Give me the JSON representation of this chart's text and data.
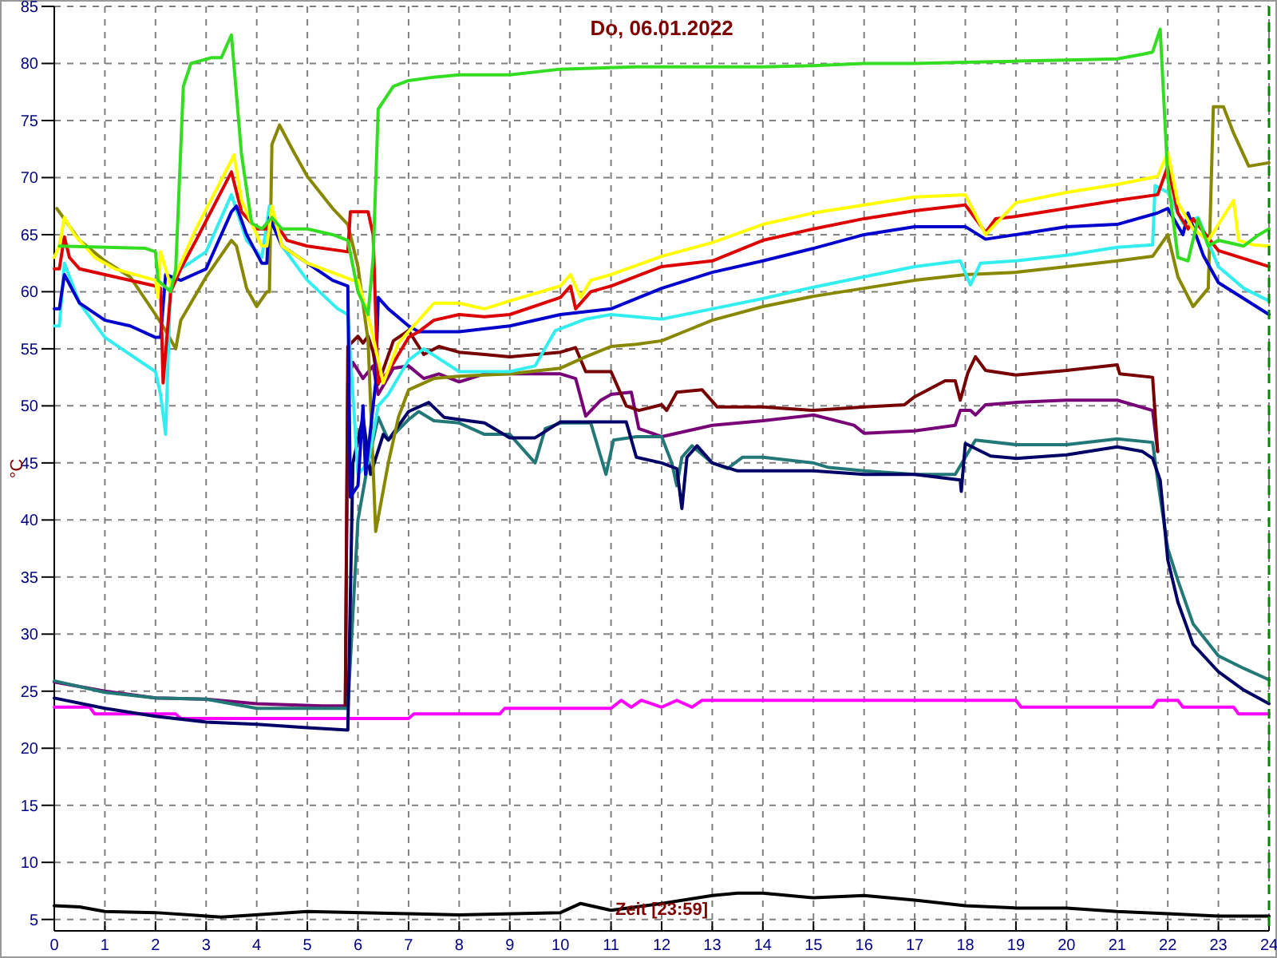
{
  "chart_data": {
    "type": "line",
    "title": "Do, 06.01.2022",
    "ylabel": "°C",
    "annotations": [
      "Zeit [23:59]"
    ],
    "xlim": [
      0,
      24
    ],
    "xticks": [
      0,
      1,
      2,
      3,
      4,
      5,
      6,
      7,
      8,
      9,
      10,
      11,
      12,
      13,
      14,
      15,
      16,
      17,
      18,
      19,
      20,
      21,
      22,
      23,
      24
    ],
    "ylim": [
      4,
      85
    ],
    "yticks": [
      5,
      10,
      15,
      20,
      25,
      30,
      35,
      40,
      45,
      50,
      55,
      60,
      65,
      70,
      75,
      80,
      85
    ],
    "grid": true,
    "ref_lines": [
      {
        "axis": "x",
        "value": 24,
        "color": "#008800",
        "line_style": "dashed"
      }
    ],
    "series": [
      {
        "color": "#000000",
        "x": [
          0,
          0.5,
          1,
          2,
          3.3,
          5,
          7,
          8,
          10,
          10.4,
          11,
          12,
          13,
          13.5,
          14,
          15,
          16,
          17,
          18,
          19,
          20,
          21,
          22,
          23,
          24
        ],
        "values": [
          6.2,
          6.1,
          5.7,
          5.6,
          5.2,
          5.7,
          5.5,
          5.4,
          5.6,
          6.4,
          5.8,
          6.4,
          7.1,
          7.3,
          7.3,
          6.9,
          7.1,
          6.7,
          6.2,
          6,
          6,
          5.7,
          5.5,
          5.3,
          5.3
        ]
      },
      {
        "color": "#ff00ff",
        "x": [
          0,
          0.7,
          0.8,
          2.4,
          2.5,
          7,
          7.1,
          8.8,
          8.9,
          11,
          11.2,
          11.4,
          11.6,
          12,
          12.3,
          12.6,
          12.8,
          19,
          19.1,
          21.7,
          21.8,
          22.2,
          22.3,
          23.3,
          23.4,
          24
        ],
        "values": [
          23.6,
          23.6,
          23,
          23,
          22.6,
          22.6,
          23,
          23,
          23.5,
          23.5,
          24.2,
          23.6,
          24.2,
          23.6,
          24.2,
          23.6,
          24.2,
          24.2,
          23.6,
          23.6,
          24.2,
          24.2,
          23.6,
          23.6,
          23,
          23
        ]
      },
      {
        "color": "#770077",
        "x": [
          0,
          1,
          2,
          3,
          4,
          5.3,
          5.75,
          5.8,
          5.9,
          6.1,
          6.3,
          6.4,
          6.7,
          7,
          7.3,
          7.6,
          8,
          8.5,
          9,
          10,
          10.3,
          10.5,
          10.8,
          11,
          11.4,
          11.55,
          12,
          13,
          14,
          15,
          15.8,
          16,
          17,
          17.8,
          17.9,
          18.1,
          18.2,
          18.4,
          19,
          20,
          21,
          21.7,
          21.8
        ],
        "values": [
          25.8,
          25,
          24.4,
          24.3,
          23.9,
          23.7,
          23.7,
          52,
          53.8,
          52.4,
          53.5,
          51,
          53.3,
          53.5,
          52.4,
          52.8,
          52.1,
          52.8,
          52.8,
          52.8,
          52.4,
          49.1,
          50.5,
          51,
          51.2,
          48,
          47.3,
          48.3,
          48.7,
          49.2,
          48.3,
          47.6,
          47.8,
          48.3,
          49.6,
          49.6,
          49.2,
          50.1,
          50.3,
          50.5,
          50.5,
          49.6,
          46
        ]
      },
      {
        "color": "#770000",
        "x": [
          5.75,
          5.8,
          6,
          6.1,
          6.2,
          6.3,
          6.4,
          6.7,
          7,
          7.3,
          7.6,
          8,
          8.5,
          9,
          10,
          10.3,
          10.5,
          11,
          11.3,
          11.55,
          12,
          12.1,
          12.3,
          12.8,
          13.1,
          14,
          15,
          16,
          16.8,
          17,
          17.6,
          17.8,
          17.9,
          18.05,
          18.2,
          18.4,
          19,
          20,
          21,
          21.05,
          21.7,
          21.8
        ],
        "values": [
          23.5,
          55.2,
          56.1,
          55.5,
          56.1,
          54.7,
          51.9,
          55.7,
          56.6,
          54.5,
          55.2,
          54.7,
          54.5,
          54.3,
          54.7,
          55.1,
          53,
          53,
          50,
          49.6,
          50.1,
          49.6,
          51.2,
          51.4,
          49.9,
          49.9,
          49.6,
          49.9,
          50.1,
          50.8,
          52.2,
          52.2,
          50.5,
          52.9,
          54.3,
          53.1,
          52.7,
          53.1,
          53.6,
          52.8,
          52.5,
          46
        ]
      },
      {
        "color": "#227777",
        "x": [
          0,
          1,
          2,
          3,
          4,
          5.8,
          6,
          6.2,
          6.4,
          6.6,
          7,
          7.2,
          7.5,
          8,
          8.5,
          9,
          9.5,
          9.7,
          10,
          10.6,
          10.8,
          10.9,
          11.05,
          11.5,
          12,
          12.2,
          12.3,
          12.4,
          12.6,
          13,
          13.3,
          13.6,
          14,
          15,
          15.3,
          16,
          17,
          17.8,
          18,
          18.2,
          19,
          20,
          21,
          21.7,
          21.8,
          22,
          22.2,
          22.5,
          23,
          23.5,
          24
        ],
        "values": [
          25.9,
          24.9,
          24.4,
          24.3,
          23.5,
          23.5,
          40,
          45,
          49,
          47,
          48.8,
          49.5,
          48.7,
          48.5,
          47.5,
          47.5,
          45,
          48,
          48.5,
          48.5,
          45.5,
          44,
          47,
          47.3,
          47.3,
          45,
          43,
          45.5,
          46.5,
          45,
          44.5,
          45.5,
          45.5,
          45,
          44.6,
          44.3,
          44,
          44,
          45.5,
          47,
          46.6,
          46.6,
          47.1,
          46.8,
          43.5,
          37.5,
          34.7,
          30.9,
          28.1,
          27,
          26
        ]
      },
      {
        "color": "#000066",
        "x": [
          0,
          1,
          2,
          3,
          4,
          5,
          5.8,
          5.9,
          6.1,
          6.25,
          6.5,
          6.6,
          7,
          7.4,
          7.7,
          8,
          8.5,
          9,
          9.5,
          10,
          11,
          11.3,
          11.5,
          12,
          12.3,
          12.4,
          12.5,
          12.7,
          13,
          13.5,
          15,
          16,
          17,
          17.9,
          17.92,
          18,
          18.5,
          19,
          20,
          21,
          21.5,
          21.7,
          21.85,
          22,
          22.2,
          22.5,
          23,
          23.5,
          24
        ],
        "values": [
          24.4,
          23.5,
          22.8,
          22.3,
          22.1,
          21.8,
          21.6,
          45,
          49,
          44,
          47.5,
          47,
          49.5,
          50.3,
          49,
          48.8,
          48.5,
          47.2,
          47.2,
          48.6,
          48.6,
          48.6,
          45.5,
          45,
          44.5,
          41,
          45.5,
          46.5,
          45,
          44.3,
          44.3,
          44,
          44,
          43.5,
          42.5,
          46.7,
          45.6,
          45.4,
          45.7,
          46.4,
          46,
          45.4,
          43.5,
          36.5,
          32.8,
          29.1,
          26.7,
          25.1,
          23.9
        ]
      },
      {
        "color": "#888800",
        "x": [
          0.05,
          0.5,
          1,
          1.5,
          2,
          2.2,
          2.4,
          2.5,
          3,
          3.5,
          3.6,
          3.8,
          4,
          4.2,
          4.25,
          4.3,
          4.45,
          4.7,
          5,
          5.5,
          5.8,
          6,
          6.2,
          6.35,
          6.6,
          6.8,
          7,
          7.5,
          8,
          9,
          10,
          10.5,
          11,
          11.5,
          12,
          12.5,
          13,
          14,
          15,
          16,
          17,
          18,
          19,
          20,
          21,
          21.7,
          22,
          22.2,
          22.5,
          22.8,
          22.9,
          23.1,
          23.3,
          23.6,
          24
        ],
        "values": [
          67.3,
          64.5,
          62.7,
          61.3,
          58,
          56.6,
          55,
          57.5,
          61.3,
          64.5,
          64,
          60.3,
          58.7,
          60,
          60,
          72.9,
          74.6,
          72.5,
          70.1,
          67.3,
          65.9,
          62.2,
          55.7,
          39,
          45,
          49,
          51.4,
          52.4,
          52.6,
          52.8,
          53.3,
          54.3,
          55.2,
          55.4,
          55.7,
          56.6,
          57.5,
          58.7,
          59.6,
          60.3,
          61,
          61.5,
          61.7,
          62.2,
          62.7,
          63.1,
          65,
          61.3,
          58.7,
          60.3,
          76.2,
          76.2,
          73.9,
          71,
          71.3
        ]
      },
      {
        "color": "#33eeee",
        "x": [
          0,
          0.1,
          0.2,
          0.5,
          1,
          1.5,
          2,
          2.1,
          2.2,
          2.3,
          2.5,
          3,
          3.5,
          3.8,
          4.1,
          4.25,
          4.5,
          5,
          5.6,
          5.8,
          6,
          6.2,
          6.4,
          6.6,
          7,
          7.3,
          8,
          9,
          9.5,
          9.9,
          10.5,
          11,
          12,
          13,
          14,
          15,
          16,
          17,
          17.9,
          18.1,
          18.3,
          19,
          20,
          21,
          21.7,
          21.75,
          22,
          22.3,
          22.6,
          23,
          23.5,
          24
        ],
        "values": [
          57,
          57,
          62.5,
          59,
          56,
          54.5,
          53,
          51,
          47.5,
          61,
          62,
          63.5,
          68.5,
          64.5,
          63,
          67.5,
          64,
          61,
          58.5,
          58,
          44,
          45,
          50,
          51,
          54,
          55,
          53,
          53,
          53.5,
          56.6,
          57.6,
          58,
          57.6,
          58.5,
          59.4,
          60.4,
          61.3,
          62.2,
          62.7,
          60.6,
          62.5,
          62.7,
          63.2,
          63.9,
          64.1,
          69.3,
          68.7,
          66,
          66.5,
          62.2,
          60.3,
          59.2
        ]
      },
      {
        "color": "#0000cc",
        "x": [
          0,
          0.1,
          0.2,
          0.5,
          1,
          1.5,
          2,
          2.1,
          2.2,
          2.5,
          3,
          3.5,
          3.6,
          3.8,
          4.1,
          4.2,
          4.25,
          4.5,
          5,
          5.5,
          5.8,
          5.85,
          6,
          6.1,
          6.15,
          6.35,
          6.4,
          6.6,
          7,
          7.2,
          8,
          9,
          10,
          11,
          12,
          13,
          14,
          15,
          16,
          17,
          18,
          18.4,
          19,
          20,
          21,
          21.8,
          22,
          22.3,
          22.4,
          22.7,
          23,
          23.5,
          24
        ],
        "values": [
          58.5,
          58.5,
          61.5,
          59,
          57.5,
          57,
          56,
          56,
          61.5,
          61,
          62,
          67,
          67.5,
          65,
          62.5,
          62.5,
          66.5,
          64,
          62.5,
          61,
          60.5,
          42,
          43,
          50,
          44,
          52,
          59.5,
          58.5,
          57,
          56.5,
          56.5,
          57,
          58,
          58.5,
          60.3,
          61.7,
          62.7,
          63.8,
          65,
          65.7,
          65.7,
          64.6,
          65,
          65.7,
          65.9,
          66.9,
          67.3,
          65,
          66.9,
          63.2,
          60.8,
          59.4,
          58
        ]
      },
      {
        "color": "#dd0000",
        "x": [
          0,
          0.1,
          0.2,
          0.3,
          0.5,
          1,
          2,
          2.1,
          2.15,
          2.3,
          2.5,
          2.8,
          3.5,
          3.7,
          4,
          4.2,
          4.3,
          4.6,
          5,
          5.8,
          5.85,
          6.2,
          6.3,
          6.35,
          6.4,
          6.6,
          7,
          7.2,
          7.5,
          8,
          8.5,
          9,
          10,
          10.2,
          10.3,
          10.6,
          11,
          12,
          13,
          14,
          15,
          16,
          17,
          18,
          18.4,
          18.6,
          19,
          20,
          21,
          21.8,
          22,
          22.2,
          22.4,
          22.5,
          23,
          24
        ],
        "values": [
          62,
          62,
          64.8,
          63,
          62,
          61.5,
          60.5,
          60.3,
          52,
          60,
          62,
          64.5,
          70.5,
          67,
          65.5,
          65.5,
          66.5,
          64.5,
          64,
          63.5,
          67,
          67,
          65,
          58,
          52,
          53,
          56,
          56.5,
          57.5,
          58,
          57.8,
          58,
          59.5,
          60.5,
          58.5,
          60,
          60.5,
          62.2,
          62.7,
          64.5,
          65.5,
          66.4,
          67.1,
          67.6,
          65.2,
          66.4,
          66.6,
          67.3,
          68,
          68.5,
          71,
          66.9,
          65.5,
          66.4,
          63.6,
          62.2
        ]
      },
      {
        "color": "#ffff00",
        "x": [
          0,
          0.1,
          0.2,
          0.4,
          0.8,
          1.2,
          2,
          2.05,
          2.1,
          2.3,
          2.5,
          2.8,
          3.5,
          3.55,
          3.7,
          3.9,
          4.1,
          4.2,
          4.3,
          4.5,
          5,
          5.6,
          5.9,
          6,
          6.25,
          6.5,
          6.8,
          7,
          7.3,
          7.5,
          8,
          8.5,
          9,
          10,
          10.2,
          10.4,
          10.6,
          11,
          12,
          13,
          14,
          15,
          16,
          17,
          18,
          18.4,
          19,
          20,
          21,
          21.8,
          22,
          22.2,
          22.5,
          22.8,
          23.3,
          23.4,
          23.7,
          24
        ],
        "values": [
          63,
          64,
          66.5,
          65,
          63,
          62,
          61,
          59.5,
          63.5,
          60.5,
          62.5,
          65.5,
          71.5,
          72,
          68,
          66,
          64,
          64,
          67.5,
          64,
          62.5,
          61.5,
          61,
          61,
          57,
          52,
          55.5,
          56.5,
          58,
          59,
          59,
          58.5,
          59.2,
          60.5,
          61.5,
          59.5,
          61,
          61.5,
          63.1,
          64.3,
          65.9,
          66.9,
          67.6,
          68.3,
          68.5,
          65,
          67.8,
          68.7,
          69.4,
          70.1,
          72.2,
          67.8,
          65.5,
          64.5,
          68,
          64.5,
          64.1,
          64
        ]
      },
      {
        "color": "#33dd22",
        "x": [
          0.1,
          1.8,
          2,
          2.05,
          2.3,
          2.4,
          2.55,
          2.7,
          3.1,
          3.3,
          3.5,
          3.7,
          3.9,
          4.1,
          4.3,
          4.5,
          5,
          5.5,
          5.8,
          6,
          6.2,
          6.3,
          6.4,
          6.7,
          7,
          7.5,
          8,
          9,
          10,
          11.5,
          12.5,
          14,
          15,
          16,
          17,
          18,
          19,
          20,
          21,
          21.5,
          21.7,
          21.85,
          22,
          22.2,
          22.4,
          22.6,
          22.8,
          23,
          23.5,
          23.8,
          24
        ],
        "values": [
          64,
          63.8,
          63.5,
          61,
          60,
          62,
          78,
          80,
          80.5,
          80.5,
          82.5,
          72,
          66,
          65.5,
          66.5,
          65.5,
          65.5,
          65,
          64.5,
          60,
          58,
          63,
          76,
          78,
          78.5,
          78.8,
          79,
          79,
          79.5,
          79.7,
          79.7,
          79.7,
          79.8,
          80,
          80,
          80.1,
          80.2,
          80.3,
          80.4,
          80.8,
          81,
          83,
          70,
          63,
          62.7,
          66.4,
          64,
          64.5,
          64,
          65,
          65.5
        ]
      }
    ]
  }
}
